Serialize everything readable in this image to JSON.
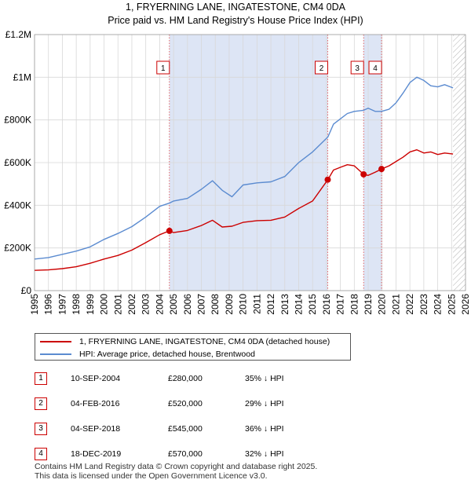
{
  "chart_data": {
    "type": "line",
    "title": "1, FRYERNING LANE, INGATESTONE, CM4 0DA",
    "subtitle": "Price paid vs. HM Land Registry's House Price Index (HPI)",
    "xlabel": "",
    "ylabel": "",
    "xlim": [
      1995,
      2026
    ],
    "ylim": [
      0,
      1200000
    ],
    "y_ticks": [
      {
        "value": 0,
        "label": "£0"
      },
      {
        "value": 200000,
        "label": "£200K"
      },
      {
        "value": 400000,
        "label": "£400K"
      },
      {
        "value": 600000,
        "label": "£600K"
      },
      {
        "value": 800000,
        "label": "£800K"
      },
      {
        "value": 1000000,
        "label": "£1M"
      },
      {
        "value": 1200000,
        "label": "£1.2M"
      }
    ],
    "x_ticks": [
      "1995",
      "1996",
      "1997",
      "1998",
      "1999",
      "2000",
      "2001",
      "2002",
      "2003",
      "2004",
      "2005",
      "2006",
      "2007",
      "2008",
      "2009",
      "2010",
      "2011",
      "2012",
      "2013",
      "2014",
      "2015",
      "2016",
      "2017",
      "2018",
      "2019",
      "2020",
      "2021",
      "2022",
      "2023",
      "2024",
      "2025",
      "2026"
    ],
    "grid": true,
    "shaded_regions": [
      {
        "from": 2004.7,
        "to": 2016.1,
        "color": "#dde5f5"
      },
      {
        "from": 2018.67,
        "to": 2019.96,
        "color": "#dde5f5"
      }
    ],
    "hatch_from": 2025.1,
    "series": [
      {
        "name": "1, FRYERNING LANE, INGATESTONE, CM4 0DA (detached house)",
        "color": "#cc0000",
        "x": [
          1995,
          1996,
          1997,
          1998,
          1999,
          2000,
          2001,
          2002,
          2003,
          2004,
          2004.7,
          2005,
          2006,
          2007,
          2007.8,
          2008.5,
          2009.2,
          2010,
          2011,
          2012,
          2013,
          2014,
          2015,
          2016.1,
          2016.5,
          2017,
          2017.5,
          2018,
          2018.67,
          2019,
          2019.5,
          2019.96,
          2020.5,
          2021,
          2021.5,
          2022,
          2022.5,
          2023,
          2023.5,
          2024,
          2024.5,
          2025.1
        ],
        "values": [
          95000,
          97000,
          103000,
          112000,
          128000,
          148000,
          165000,
          190000,
          225000,
          262000,
          280000,
          272000,
          282000,
          305000,
          330000,
          298000,
          302000,
          320000,
          328000,
          330000,
          345000,
          385000,
          420000,
          520000,
          565000,
          578000,
          590000,
          585000,
          545000,
          540000,
          555000,
          570000,
          585000,
          605000,
          625000,
          650000,
          660000,
          645000,
          650000,
          638000,
          645000,
          640000
        ]
      },
      {
        "name": "HPI: Average price, detached house, Brentwood",
        "color": "#5b8bd0",
        "x": [
          1995,
          1996,
          1997,
          1998,
          1999,
          2000,
          2001,
          2002,
          2003,
          2004,
          2004.7,
          2005,
          2006,
          2007,
          2007.8,
          2008.5,
          2009.2,
          2010,
          2011,
          2012,
          2013,
          2014,
          2015,
          2016.1,
          2016.5,
          2017,
          2017.5,
          2018,
          2018.67,
          2019,
          2019.5,
          2019.96,
          2020.5,
          2021,
          2021.5,
          2022,
          2022.5,
          2023,
          2023.5,
          2024,
          2024.5,
          2025.1
        ],
        "values": [
          148000,
          155000,
          170000,
          185000,
          205000,
          240000,
          268000,
          300000,
          345000,
          395000,
          410000,
          420000,
          432000,
          475000,
          515000,
          470000,
          440000,
          495000,
          505000,
          510000,
          535000,
          600000,
          650000,
          720000,
          780000,
          805000,
          830000,
          840000,
          845000,
          855000,
          840000,
          840000,
          850000,
          880000,
          925000,
          975000,
          1000000,
          985000,
          960000,
          955000,
          965000,
          950000
        ]
      }
    ],
    "sale_points": [
      {
        "label": "1",
        "x": 2004.7,
        "value": 280000
      },
      {
        "label": "2",
        "x": 2016.09,
        "value": 520000
      },
      {
        "label": "3",
        "x": 2018.67,
        "value": 545000
      },
      {
        "label": "4",
        "x": 2019.96,
        "value": 570000
      }
    ]
  },
  "legend": {
    "property_label": "1, FRYERNING LANE, INGATESTONE, CM4 0DA (detached house)",
    "hpi_label": "HPI: Average price, detached house, Brentwood"
  },
  "sales": [
    {
      "num": "1",
      "date": "10-SEP-2004",
      "price": "£280,000",
      "hpi": "35% ↓ HPI"
    },
    {
      "num": "2",
      "date": "04-FEB-2016",
      "price": "£520,000",
      "hpi": "29% ↓ HPI"
    },
    {
      "num": "3",
      "date": "04-SEP-2018",
      "price": "£545,000",
      "hpi": "36% ↓ HPI"
    },
    {
      "num": "4",
      "date": "18-DEC-2019",
      "price": "£570,000",
      "hpi": "32% ↓ HPI"
    }
  ],
  "footer": {
    "line1": "Contains HM Land Registry data © Crown copyright and database right 2025.",
    "line2": "This data is licensed under the Open Government Licence v3.0."
  },
  "colors": {
    "property": "#cc0000",
    "hpi": "#5b8bd0",
    "shade": "#dde5f5"
  }
}
